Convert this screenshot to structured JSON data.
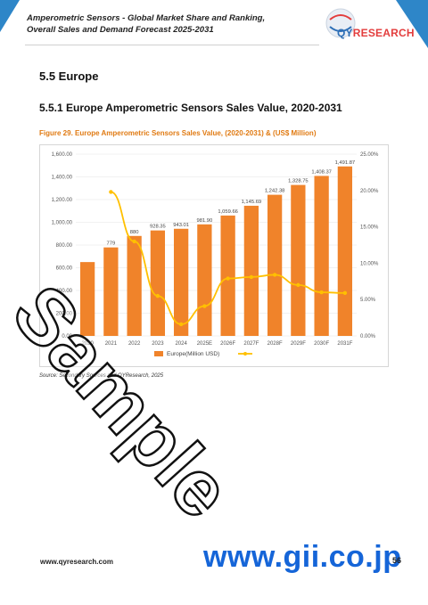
{
  "header": {
    "title": "Amperometric Sensors - Global Market Share and Ranking, Overall Sales and Demand Forecast 2025-2031",
    "logo_text_main": "QY",
    "logo_text_accent": "RESEARCH"
  },
  "section": {
    "heading": "5.5  Europe",
    "subheading": "5.5.1  Europe Amperometric Sensors Sales Value, 2020-2031"
  },
  "figure": {
    "caption": "Figure 29.  Europe Amperometric Sensors Sales Value, (2020-2031) & (US$ Million)"
  },
  "chart_data": {
    "type": "bar",
    "categories": [
      "2020",
      "2021",
      "2022",
      "2023",
      "2024",
      "2025E",
      "2026F",
      "2027F",
      "2028F",
      "2029F",
      "2030F",
      "2031F"
    ],
    "series": [
      {
        "name": "Europe(Million USD)",
        "type": "bar",
        "color": "#f0832a",
        "values": [
          650,
          779,
          880,
          928.35,
          943.01,
          981.9,
          1059.66,
          1145.69,
          1242.38,
          1328.75,
          1408.37,
          1491.87
        ],
        "labels": [
          "",
          "779",
          "880",
          "928.35",
          "943.01",
          "981.90",
          "1,059.66",
          "1,145.69",
          "1,242.38",
          "1,328.75",
          "1,408.37",
          "1,491.87"
        ]
      },
      {
        "name": "",
        "type": "line",
        "axis": "right",
        "color": "#ffc000",
        "values": [
          null,
          19.8,
          13.0,
          5.5,
          1.6,
          4.1,
          7.9,
          8.1,
          8.4,
          7.0,
          6.0,
          5.9
        ]
      }
    ],
    "y_left": {
      "min": 0,
      "max": 1600,
      "ticks": [
        "0.00",
        "200.00",
        "400.00",
        "600.00",
        "800.00",
        "1,000.00",
        "1,200.00",
        "1,400.00",
        "1,600.00"
      ]
    },
    "y_right": {
      "min": 0,
      "max": 25,
      "ticks": [
        "0.00%",
        "5.00%",
        "10.00%",
        "15.00%",
        "20.00%",
        "25.00%"
      ]
    },
    "legend": "bottom",
    "grid": true
  },
  "source_note": "Source: Secondary Sources and QYResearch, 2025",
  "footer": {
    "url": "www.qyresearch.com",
    "page": "56"
  },
  "watermarks": {
    "sample": "Sample",
    "gii": "www.gii.co.jp"
  }
}
